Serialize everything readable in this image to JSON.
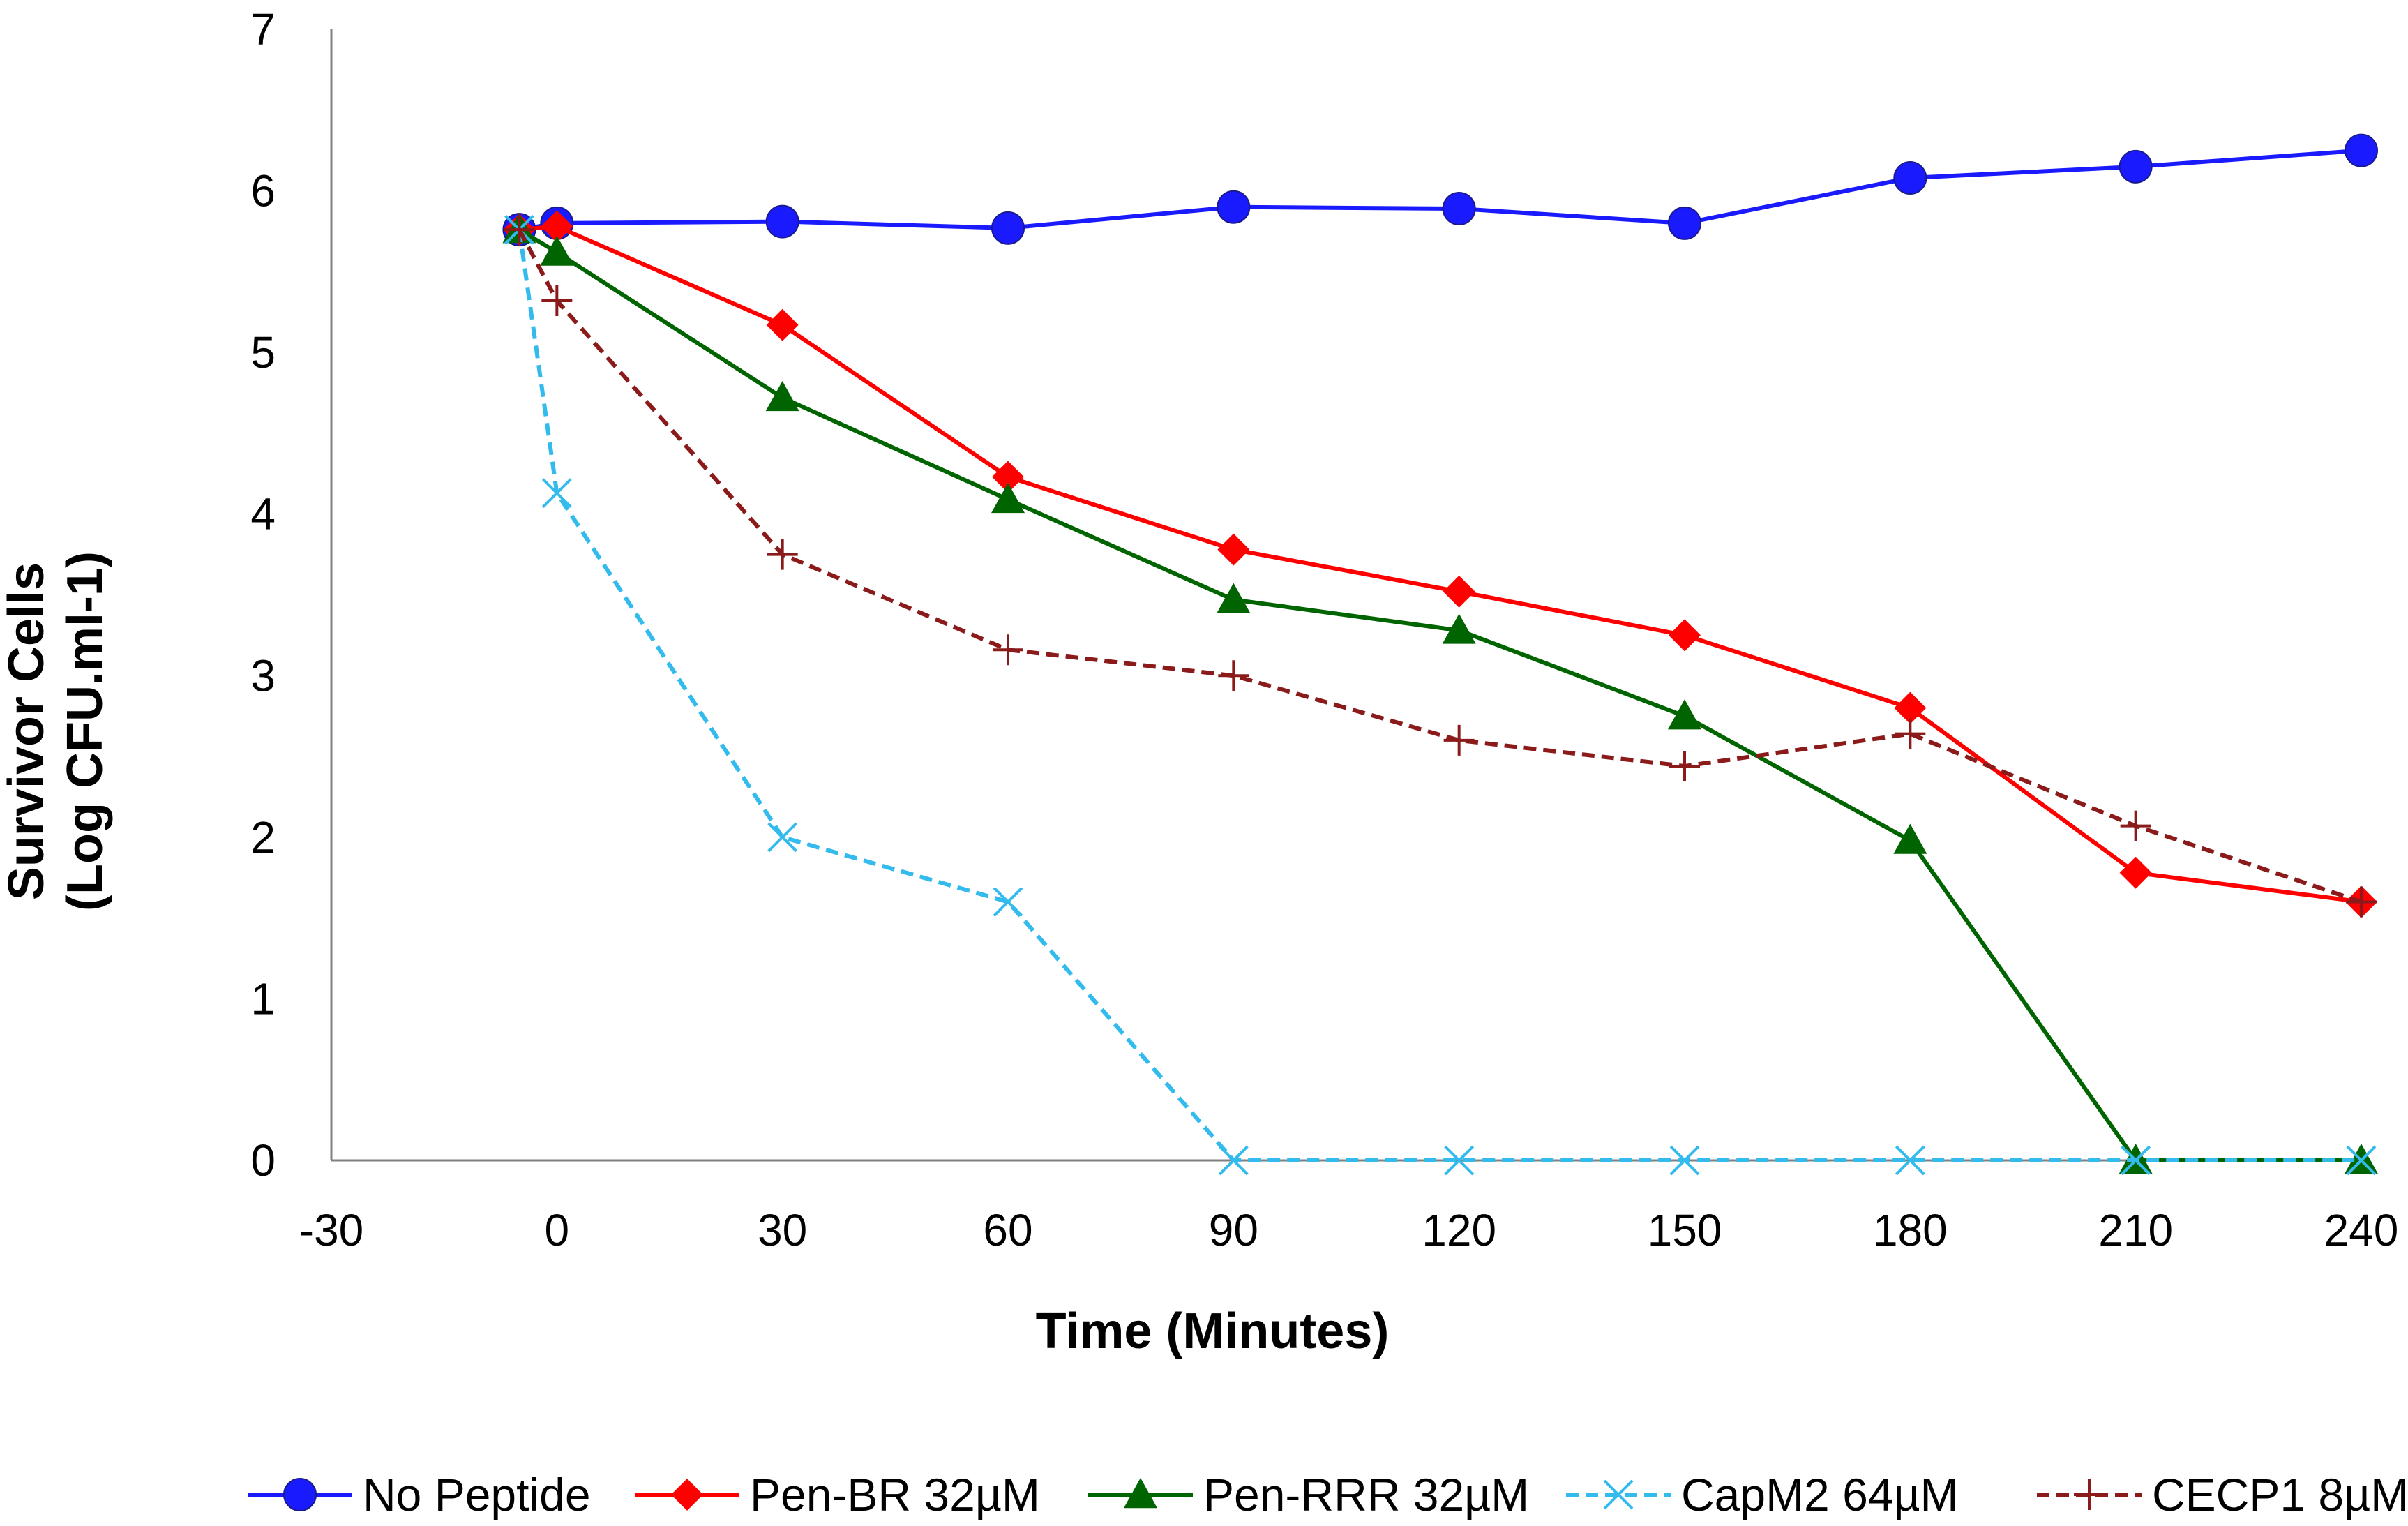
{
  "chart_data": {
    "type": "line",
    "title": "",
    "xlabel": "Time (Minutes)",
    "ylabel_line1": "Survivor Cells",
    "ylabel_line2": "(Log CFU.ml-1)",
    "xlim": [
      -30,
      240
    ],
    "ylim": [
      0,
      7
    ],
    "xticks": [
      -30,
      0,
      30,
      60,
      90,
      120,
      150,
      180,
      210,
      240
    ],
    "yticks": [
      0,
      1,
      2,
      3,
      4,
      5,
      6,
      7
    ],
    "grid": false,
    "legend_position": "bottom",
    "series": [
      {
        "name": "No Peptide",
        "color": "#1a1aff",
        "dash": "solid",
        "marker": "circle",
        "x": [
          -5,
          0,
          30,
          60,
          90,
          120,
          150,
          180,
          210,
          240
        ],
        "y": [
          5.76,
          5.8,
          5.81,
          5.77,
          5.9,
          5.89,
          5.8,
          6.08,
          6.15,
          6.25
        ]
      },
      {
        "name": "Pen-BR 32µM",
        "color": "#ff0000",
        "dash": "solid",
        "marker": "diamond",
        "x": [
          -5,
          0,
          30,
          60,
          90,
          120,
          150,
          180,
          210,
          240
        ],
        "y": [
          5.76,
          5.78,
          5.17,
          4.23,
          3.78,
          3.52,
          3.25,
          2.8,
          1.78,
          1.6
        ]
      },
      {
        "name": "Pen-RRR 32µM",
        "color": "#006400",
        "dash": "solid",
        "marker": "triangle",
        "x": [
          -5,
          0,
          30,
          60,
          90,
          120,
          150,
          180,
          210,
          240
        ],
        "y": [
          5.76,
          5.62,
          4.72,
          4.09,
          3.47,
          3.28,
          2.75,
          1.98,
          0.0,
          0.0
        ]
      },
      {
        "name": "CapM2 64µM",
        "color": "#33bbee",
        "dash": "dashed",
        "marker": "x",
        "x": [
          -5,
          0,
          30,
          60,
          90,
          120,
          150,
          180,
          210,
          240
        ],
        "y": [
          5.76,
          4.13,
          2.0,
          1.6,
          0.0,
          0.0,
          0.0,
          0.0,
          0.0,
          0.0
        ]
      },
      {
        "name": "CECP1 8µM",
        "color": "#8b1a1a",
        "dash": "dashed",
        "marker": "plus",
        "x": [
          -5,
          0,
          30,
          60,
          90,
          120,
          150,
          180,
          210,
          240
        ],
        "y": [
          5.76,
          5.32,
          3.75,
          3.16,
          3.0,
          2.6,
          2.44,
          2.64,
          2.07,
          1.6
        ]
      }
    ]
  }
}
